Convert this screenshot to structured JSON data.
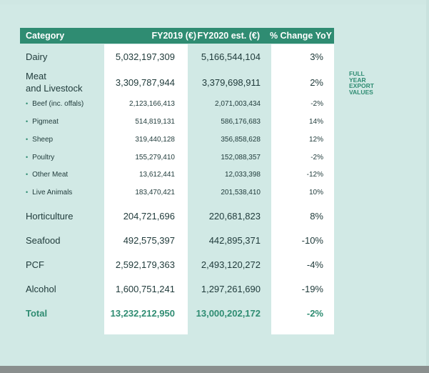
{
  "table": {
    "headers": {
      "category": "Category",
      "fy2019": "FY2019 (€)",
      "fy2020": "FY2020 est. (€)",
      "change": "% Change YoY"
    },
    "rows": [
      {
        "category": "Dairy",
        "fy2019": "5,032,197,309",
        "fy2020": "5,166,544,104",
        "change": "3%"
      },
      {
        "category_line1": "Meat",
        "category_line2": "and Livestock",
        "fy2019": "3,309,787,944",
        "fy2020": "3,379,698,911",
        "change": "2%"
      },
      {
        "category": "Beef (inc. offals)",
        "fy2019": "2,123,166,413",
        "fy2020": "2,071,003,434",
        "change": "-2%"
      },
      {
        "category": "Pigmeat",
        "fy2019": "514,819,131",
        "fy2020": "586,176,683",
        "change": "14%"
      },
      {
        "category": "Sheep",
        "fy2019": "319,440,128",
        "fy2020": "356,858,628",
        "change": "12%"
      },
      {
        "category": "Poultry",
        "fy2019": "155,279,410",
        "fy2020": "152,088,357",
        "change": "-2%"
      },
      {
        "category": "Other Meat",
        "fy2019": "13,612,441",
        "fy2020": "12,033,398",
        "change": "-12%"
      },
      {
        "category": "Live Animals",
        "fy2019": "183,470,421",
        "fy2020": "201,538,410",
        "change": "10%"
      },
      {
        "category": "Horticulture",
        "fy2019": "204,721,696",
        "fy2020": "220,681,823",
        "change": "8%"
      },
      {
        "category": "Seafood",
        "fy2019": "492,575,397",
        "fy2020": "442,895,371",
        "change": "-10%"
      },
      {
        "category": "PCF",
        "fy2019": "2,592,179,363",
        "fy2020": "2,493,120,272",
        "change": "-4%"
      },
      {
        "category": "Alcohol",
        "fy2019": "1,600,751,241",
        "fy2020": "1,297,261,690",
        "change": "-19%"
      }
    ],
    "total": {
      "category": "Total",
      "fy2019": "13,232,212,950",
      "fy2020": "13,000,202,172",
      "change": "-2%"
    }
  },
  "side_note": {
    "line1": "FULL",
    "line2": "YEAR",
    "line3": "EXPORT",
    "line4": "VALUES"
  },
  "bullet_glyph": "•",
  "colors": {
    "accent": "#2f8c72",
    "background": "#d1e9e5",
    "column_highlight": "#ffffff"
  }
}
